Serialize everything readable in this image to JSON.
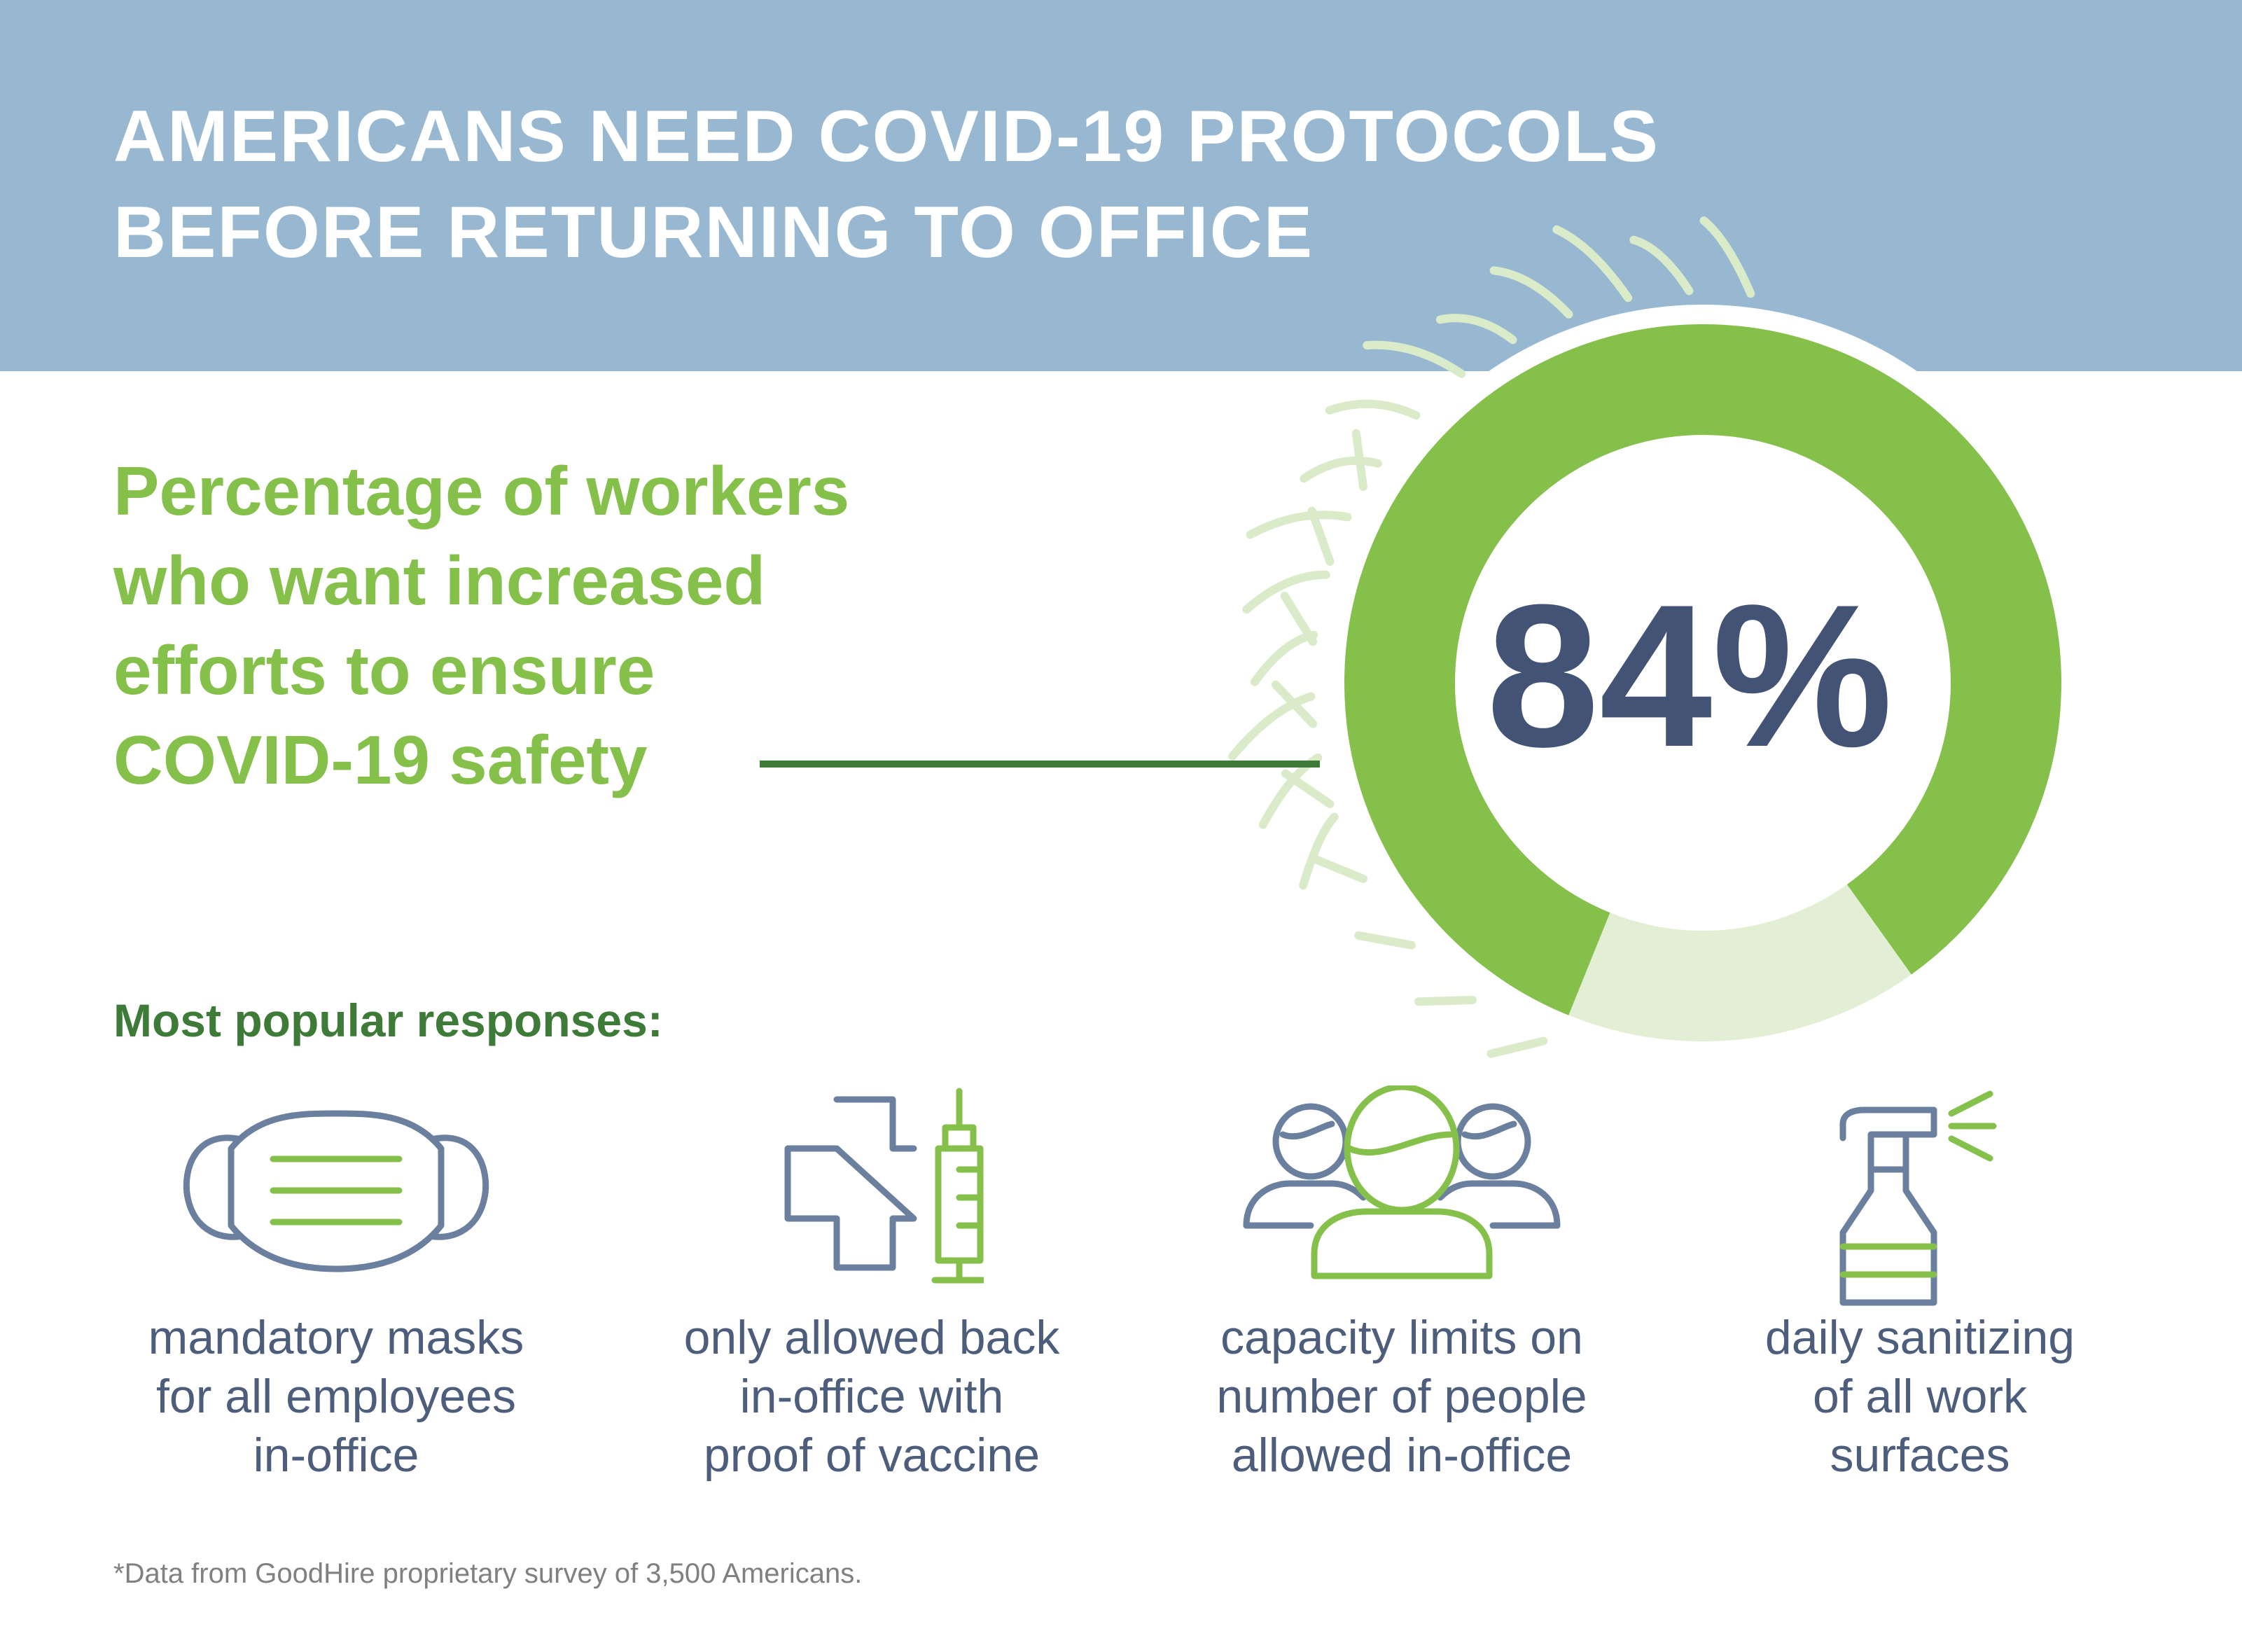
{
  "title": {
    "line1": "AMERICANS NEED COVID-19 PROTOCOLS",
    "line2": "BEFORE RETURNING TO OFFICE"
  },
  "subtitle": {
    "lines": [
      "Percentage of workers",
      "who want increased",
      "efforts to ensure",
      "COVID-19 safety"
    ]
  },
  "stat": {
    "label": "84%",
    "value": 0.84
  },
  "colors": {
    "header": "#98b8d2",
    "green": "#84c04a",
    "dark_green": "#3e7b38",
    "light_green": "#e2efd4",
    "navy": "#425376",
    "slate": "#6b809f"
  },
  "responses": {
    "heading": "Most popular responses:",
    "items": [
      {
        "icon": "face-mask-icon",
        "lines": [
          "mandatory masks",
          "for all employees",
          "in-office"
        ]
      },
      {
        "icon": "vaccine-syringe-icon",
        "lines": [
          "only allowed back",
          "in-office with",
          "proof of vaccine"
        ]
      },
      {
        "icon": "people-group-icon",
        "lines": [
          "capacity limits on",
          "number of people",
          "allowed in-office"
        ]
      },
      {
        "icon": "spray-bottle-icon",
        "lines": [
          "daily sanitizing",
          "of all work",
          "surfaces"
        ]
      }
    ]
  },
  "footnote": "*Data from GoodHire proprietary survey of 3,500 Americans."
}
